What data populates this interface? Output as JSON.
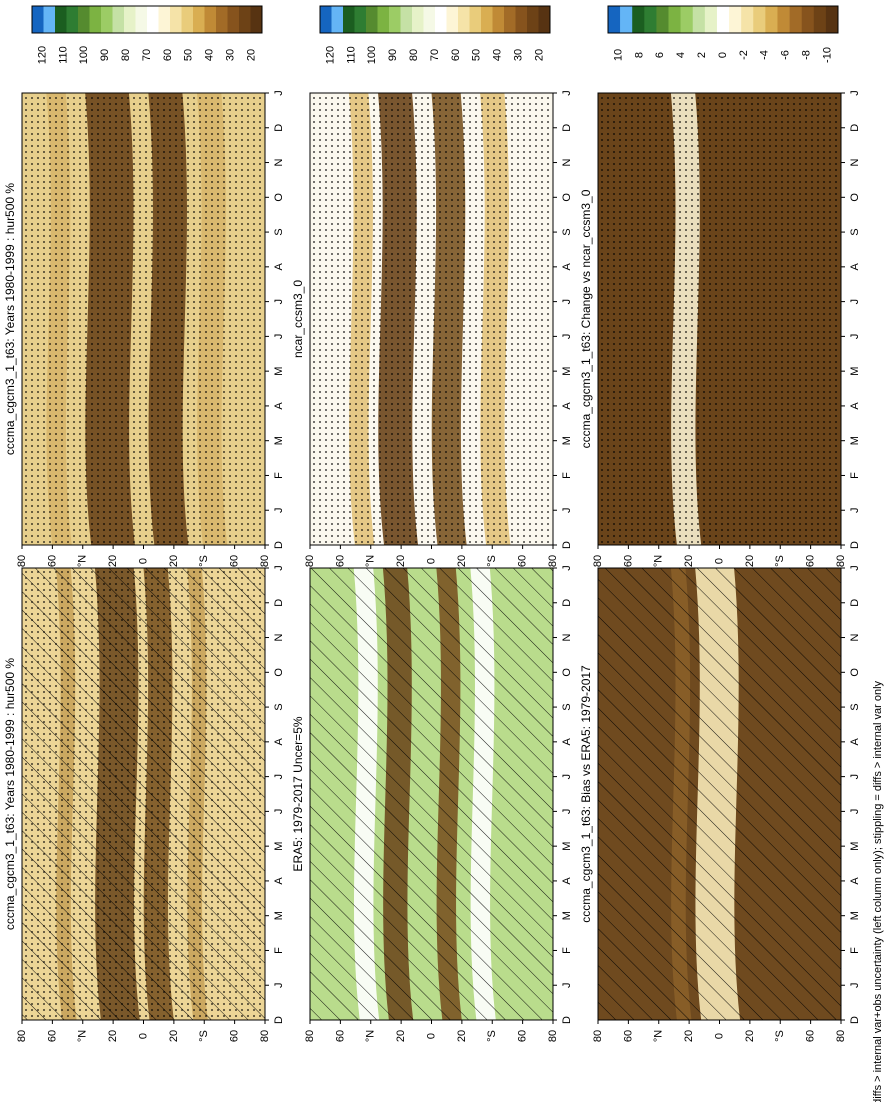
{
  "months": [
    "D",
    "J",
    "F",
    "M",
    "A",
    "M",
    "J",
    "J",
    "A",
    "S",
    "O",
    "N",
    "D",
    "J"
  ],
  "lat_ticks": [
    "80",
    "60",
    "°N",
    "20",
    "0",
    "20",
    "°S",
    "60",
    "80"
  ],
  "footer": "hatching = diffs > internal var+obs uncertainty (left column only); stippling = diffs > internal var only",
  "colorbars": {
    "absolute": {
      "labels": [
        "120",
        "110",
        "100",
        "90",
        "80",
        "70",
        "60",
        "50",
        "40",
        "30",
        "20"
      ],
      "colors": [
        "#1565c0",
        "#64b5f6",
        "#1b5e20",
        "#2e7d32",
        "#558b2f",
        "#7cb342",
        "#9ccc65",
        "#c5e1a5",
        "#e6f2c8",
        "#f5f9e6",
        "#ffffff",
        "#fdf5d6",
        "#f5e3a8",
        "#e9cc7b",
        "#d9ae52",
        "#c08a36",
        "#a26b27",
        "#86531d",
        "#6d4216",
        "#573312"
      ]
    },
    "difference": {
      "labels": [
        "10",
        "8",
        "6",
        "4",
        "2",
        "0",
        "-2",
        "-4",
        "-6",
        "-8",
        "-10"
      ],
      "colors": [
        "#1565c0",
        "#64b5f6",
        "#1b5e20",
        "#2e7d32",
        "#558b2f",
        "#7cb342",
        "#9ccc65",
        "#c5e1a5",
        "#e6f2c8",
        "#ffffff",
        "#fdf5d6",
        "#f5e3a8",
        "#e9cc7b",
        "#d9ae52",
        "#c08a36",
        "#a26b27",
        "#86531d",
        "#6d4216",
        "#573312"
      ]
    }
  },
  "chart_data": [
    {
      "type": "heatmap",
      "id": "p1",
      "title": "cccma_cgcm3_1_t63: Years 1980-1999 : hur500 %",
      "base": "#ecd596",
      "overlay": "hatch",
      "stipple": true,
      "colorbar": "absolute"
    },
    {
      "type": "heatmap",
      "id": "p2",
      "title": "cccma_cgcm3_1_t63: Years 1980-1999 : hur500 %",
      "base": "#e7cf8c",
      "overlay": "none",
      "stipple": true,
      "colorbar": "absolute"
    },
    {
      "type": "heatmap",
      "id": "p3",
      "title": "ERA5: 1979-2017 Uncer=5%",
      "base": "#b9dc8c",
      "overlay": "hatch",
      "stipple": false,
      "colorbar": "absolute"
    },
    {
      "type": "heatmap",
      "id": "p4",
      "title": "ncar_ccsm3_0",
      "base": "#fbf8ee",
      "overlay": "none",
      "stipple": true,
      "colorbar": "absolute"
    },
    {
      "type": "heatmap",
      "id": "p5",
      "title": "cccma_cgcm3_1_t63: Bias vs ERA5: 1979-2017",
      "base": "#6f4a1f",
      "overlay": "hatch",
      "stipple": false,
      "colorbar": "difference"
    },
    {
      "type": "heatmap",
      "id": "p6",
      "title": "cccma_cgcm3_1_t63: Change vs ncar_ccsm3_0",
      "base": "#6a441a",
      "overlay": "none",
      "stipple": true,
      "colorbar": "difference"
    }
  ]
}
